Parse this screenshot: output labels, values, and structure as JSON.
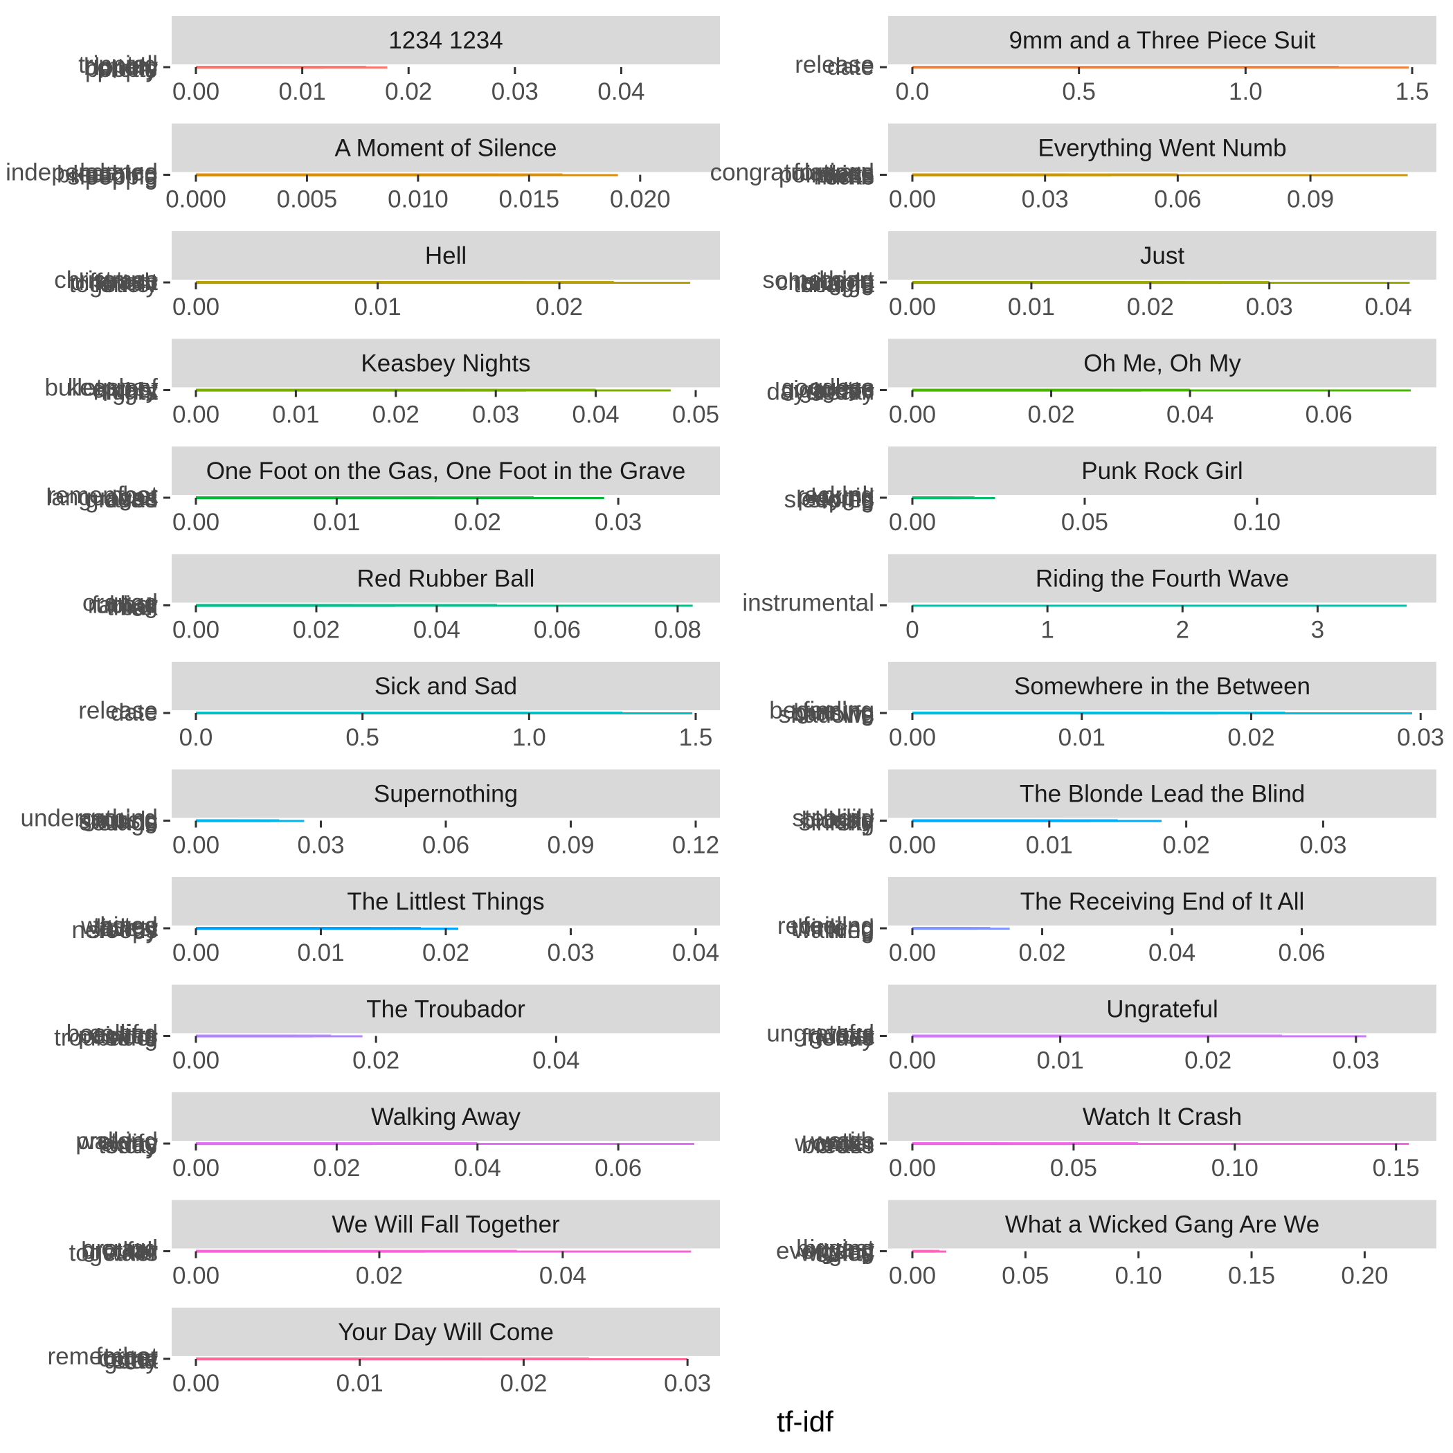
{
  "chart_data": {
    "type": "bar",
    "orientation": "horizontal",
    "facet_columns": 2,
    "xlabel": "tf-idf",
    "ylabel": "",
    "legend": "none",
    "grid": false,
    "panels": [
      {
        "title": "1234 1234",
        "color": "#F8766D",
        "xlim": [
          0,
          0.047
        ],
        "ticks": [
          "0.00",
          "0.01",
          "0.02",
          "0.03",
          "0.04"
        ],
        "tick_values": [
          0,
          0.01,
          0.02,
          0.03,
          0.04
        ],
        "words": [
          "tripping",
          "bottom",
          "people",
          "tell",
          "lonely",
          "pretty"
        ],
        "values": [
          0.018,
          0.016,
          0.012,
          0.01,
          0.008,
          0.008
        ]
      },
      {
        "title": "9mm and a Three Piece Suit",
        "color": "#ED8141",
        "xlim": [
          0,
          1.5
        ],
        "ticks": [
          "0.0",
          "0.5",
          "1.0",
          "1.5"
        ],
        "tick_values": [
          0,
          0.5,
          1.0,
          1.5
        ],
        "words": [
          "release",
          "date"
        ],
        "values": [
          1.49,
          1.28
        ]
      },
      {
        "title": "A Moment of Silence",
        "color": "#DE8C00",
        "xlim": [
          0,
          0.0225
        ],
        "ticks": [
          "0.000",
          "0.005",
          "0.010",
          "0.015",
          "0.020"
        ],
        "tick_values": [
          0,
          0.005,
          0.01,
          0.015,
          0.02
        ],
        "words": [
          "independence",
          "breathing",
          "sleeping",
          "located",
          "keeping",
          "people"
        ],
        "values": [
          0.019,
          0.0165,
          0.0148,
          0.0136,
          0.013,
          0.012
        ]
      },
      {
        "title": "Everything Went Numb",
        "color": "#CD9600",
        "xlim": [
          0,
          0.113
        ],
        "ticks": [
          "0.00",
          "0.03",
          "0.06",
          "0.09"
        ],
        "tick_values": [
          0,
          0.03,
          0.06,
          0.09
        ],
        "words": [
          "congratulations",
          "pointless",
          "numb",
          "forward",
          "shirts",
          "rocks"
        ],
        "values": [
          0.112,
          0.06,
          0.045,
          0.035,
          0.028,
          0.022
        ]
      },
      {
        "title": "Hell",
        "color": "#B79F00",
        "xlim": [
          0,
          0.0275
        ],
        "ticks": [
          "0.00",
          "0.01",
          "0.02"
        ],
        "tick_values": [
          0,
          0.01,
          0.02
        ],
        "words": [
          "return",
          "different",
          "together",
          "christmas",
          "crash",
          "lonely"
        ],
        "values": [
          0.0272,
          0.023,
          0.02,
          0.018,
          0.016,
          0.014
        ]
      },
      {
        "title": "Just",
        "color": "#9DA700",
        "xlim": [
          0,
          0.042
        ],
        "ticks": [
          "0.00",
          "0.01",
          "0.02",
          "0.03",
          "0.04"
        ],
        "tick_values": [
          0,
          0.01,
          0.02,
          0.03,
          0.04
        ],
        "words": [
          "something",
          "changing",
          "charge",
          "heart",
          "simple",
          "thought"
        ],
        "values": [
          0.0418,
          0.03,
          0.026,
          0.023,
          0.021,
          0.02
        ]
      },
      {
        "title": "Keasbey Nights",
        "color": "#7CAE00",
        "xlim": [
          0,
          0.05
        ],
        "ticks": [
          "0.00",
          "0.01",
          "0.02",
          "0.03",
          "0.04",
          "0.05"
        ],
        "tick_values": [
          0,
          0.01,
          0.02,
          0.03,
          0.04,
          0.05
        ],
        "words": [
          "bulletproof",
          "vest",
          "nights",
          "keasbey",
          "empty",
          "night"
        ],
        "values": [
          0.0475,
          0.04,
          0.033,
          0.03,
          0.027,
          0.025
        ]
      },
      {
        "title": "Oh Me, Oh My",
        "color": "#49B500",
        "xlim": [
          0,
          0.072
        ],
        "ticks": [
          "0.00",
          "0.02",
          "0.04",
          "0.06"
        ],
        "tick_values": [
          0,
          0.02,
          0.04,
          0.06
        ],
        "words": [
          "goodbye",
          "cigarette",
          "daydream",
          "guess",
          "goes",
          "today"
        ],
        "values": [
          0.0718,
          0.04,
          0.033,
          0.029,
          0.024,
          0.022
        ]
      },
      {
        "title": "One Foot on the Gas, One Foot in the Grave",
        "color": "#00BA38",
        "xlim": [
          0,
          0.0355
        ],
        "ticks": [
          "0.00",
          "0.01",
          "0.02",
          "0.03"
        ],
        "tick_values": [
          0,
          0.01,
          0.02,
          0.03
        ],
        "words": [
          "remember",
          "languages",
          "graves",
          "foot",
          "gas",
          "dead"
        ],
        "values": [
          0.029,
          0.024,
          0.02,
          0.017,
          0.015,
          0.0125
        ]
      },
      {
        "title": "Punk Rock Girl",
        "color": "#00BE6C",
        "xlim": [
          0,
          0.145
        ],
        "ticks": [
          "0.00",
          "0.05",
          "0.10"
        ],
        "tick_values": [
          0,
          0.05,
          0.1
        ],
        "words": [
          "punk",
          "playing",
          "sleeping",
          "rocking",
          "girl",
          "stores"
        ],
        "values": [
          0.024,
          0.018,
          0.014,
          0.012,
          0.011,
          0.01
        ]
      },
      {
        "title": "Red Rubber Ball",
        "color": "#00C08B",
        "xlim": [
          0,
          0.083
        ],
        "ticks": [
          "0.00",
          "0.02",
          "0.04",
          "0.06",
          "0.08"
        ],
        "tick_values": [
          0,
          0.02,
          0.04,
          0.06,
          0.08
        ],
        "words": [
          "orange",
          "rubber",
          "ball",
          "red",
          "fading",
          "think"
        ],
        "values": [
          0.0825,
          0.05,
          0.033,
          0.026,
          0.021,
          0.0165
        ]
      },
      {
        "title": "Riding the Fourth Wave",
        "color": "#00C1A7",
        "xlim": [
          0,
          3.7
        ],
        "ticks": [
          "0",
          "1",
          "2",
          "3"
        ],
        "tick_values": [
          0,
          1,
          2,
          3
        ],
        "words": [
          "instrumental"
        ],
        "values": [
          3.66
        ]
      },
      {
        "title": "Sick and Sad",
        "color": "#00BFC2",
        "xlim": [
          0,
          1.5
        ],
        "ticks": [
          "0.0",
          "0.5",
          "1.0",
          "1.5"
        ],
        "tick_values": [
          0,
          0.5,
          1.0,
          1.5
        ],
        "words": [
          "release",
          "date"
        ],
        "values": [
          1.49,
          1.28
        ]
      },
      {
        "title": "Somewhere in the Between",
        "color": "#00BBDB",
        "xlim": [
          0,
          0.0295
        ],
        "ticks": [
          "0.00",
          "0.01",
          "0.02",
          "0.03"
        ],
        "tick_values": [
          0,
          0.01,
          0.02,
          0.03
        ],
        "words": [
          "beginning",
          "chasing",
          "shadows",
          "feeling",
          "burning",
          "life"
        ],
        "values": [
          0.0295,
          0.022,
          0.018,
          0.015,
          0.013,
          0.011
        ]
      },
      {
        "title": "Supernothing",
        "color": "#00B6EB",
        "xlim": [
          0,
          0.12
        ],
        "ticks": [
          "0.00",
          "0.03",
          "0.06",
          "0.09",
          "0.12"
        ],
        "tick_values": [
          0,
          0.03,
          0.06,
          0.09,
          0.12
        ],
        "words": [
          "underground",
          "starting",
          "stage",
          "nothing",
          "music",
          "sounds"
        ],
        "values": [
          0.026,
          0.02,
          0.018,
          0.015,
          0.012,
          0.01
        ]
      },
      {
        "title": "The Blonde Lead the Blind",
        "color": "#00ADFA",
        "xlim": [
          0,
          0.0365
        ],
        "ticks": [
          "0.00",
          "0.01",
          "0.02",
          "0.03"
        ],
        "tick_values": [
          0,
          0.01,
          0.02,
          0.03
        ],
        "words": [
          "steadily",
          "blonde",
          "sinking",
          "blind",
          "lead",
          "sky"
        ],
        "values": [
          0.0182,
          0.015,
          0.013,
          0.011,
          0.01,
          0.009
        ]
      },
      {
        "title": "The Littlest Things",
        "color": "#00A2FF",
        "xlim": [
          0,
          0.04
        ],
        "ticks": [
          "0.00",
          "0.01",
          "0.02",
          "0.03",
          "0.04"
        ],
        "tick_values": [
          0,
          0.01,
          0.02,
          0.03,
          0.04
        ],
        "words": [
          "wasted",
          "littlest",
          "sleepy",
          "things",
          "away",
          "nervous"
        ],
        "values": [
          0.021,
          0.018,
          0.016,
          0.014,
          0.013,
          0.012
        ]
      },
      {
        "title": "The Receiving End of It All",
        "color": "#7F96FF",
        "xlim": [
          0,
          0.077
        ],
        "ticks": [
          "0.00",
          "0.02",
          "0.04",
          "0.06"
        ],
        "tick_values": [
          0,
          0.02,
          0.04,
          0.06
        ],
        "words": [
          "receiving",
          "thinking",
          "tired",
          "feeling",
          "end",
          "walking"
        ],
        "values": [
          0.015,
          0.012,
          0.01,
          0.009,
          0.008,
          0.0075
        ]
      },
      {
        "title": "The Troubador",
        "color": "#B385FF",
        "xlim": [
          0,
          0.0555
        ],
        "ticks": [
          "0.00",
          "0.02",
          "0.04"
        ],
        "tick_values": [
          0,
          0.02,
          0.04
        ],
        "words": [
          "beautiful",
          "colors",
          "troubador",
          "calling",
          "painted",
          "song"
        ],
        "values": [
          0.0185,
          0.015,
          0.013,
          0.011,
          0.01,
          0.009
        ]
      },
      {
        "title": "Ungrateful",
        "color": "#D177FF",
        "xlim": [
          0,
          0.0338
        ],
        "ticks": [
          "0.00",
          "0.01",
          "0.02",
          "0.03"
        ],
        "tick_values": [
          0,
          0.01,
          0.02,
          0.03
        ],
        "words": [
          "ungrateful",
          "guess",
          "today",
          "ways",
          "lost",
          "friends"
        ],
        "values": [
          0.0307,
          0.025,
          0.02,
          0.018,
          0.016,
          0.014
        ]
      },
      {
        "title": "Walking Away",
        "color": "#E36EF6",
        "xlim": [
          0,
          0.071
        ],
        "ticks": [
          "0.00",
          "0.02",
          "0.04",
          "0.06"
        ],
        "tick_values": [
          0,
          0.02,
          0.04,
          0.06
        ],
        "words": [
          "pretend",
          "away",
          "today",
          "walking",
          "life",
          "story"
        ],
        "values": [
          0.0708,
          0.04,
          0.025,
          0.02,
          0.017,
          0.015
        ]
      },
      {
        "title": "Watch It Crash",
        "color": "#F265E7",
        "xlim": [
          0,
          0.155
        ],
        "ticks": [
          "0.00",
          "0.05",
          "0.10",
          "0.15"
        ],
        "tick_values": [
          0,
          0.05,
          0.1,
          0.15
        ],
        "words": [
          "watch",
          "crash",
          "breaks",
          "waits",
          "wonder",
          "cross"
        ],
        "values": [
          0.154,
          0.07,
          0.05,
          0.03,
          0.025,
          0.015
        ]
      },
      {
        "title": "We Will Fall Together",
        "color": "#FB61D7",
        "xlim": [
          0,
          0.0545
        ],
        "ticks": [
          "0.00",
          "0.02",
          "0.04"
        ],
        "tick_values": [
          0,
          0.02,
          0.04
        ],
        "words": [
          "ground",
          "fall",
          "together",
          "crawl",
          "brother",
          "walls"
        ],
        "values": [
          0.054,
          0.035,
          0.025,
          0.02,
          0.016,
          0.014
        ]
      },
      {
        "title": "What a Wicked Gang Are We",
        "color": "#FF62BC",
        "xlim": [
          0,
          0.221
        ],
        "ticks": [
          "0.00",
          "0.05",
          "0.10",
          "0.15",
          "0.20"
        ],
        "tick_values": [
          0,
          0.05,
          0.1,
          0.15,
          0.2
        ],
        "words": [
          "biggest",
          "gang",
          "wicked",
          "buying",
          "everyday",
          "fights"
        ],
        "values": [
          0.015,
          0.012,
          0.01,
          0.009,
          0.008,
          0.007
        ]
      },
      {
        "title": "Your Day Will Come",
        "color": "#FF6A98",
        "xlim": [
          0,
          0.0305
        ],
        "ticks": [
          "0.00",
          "0.01",
          "0.02",
          "0.03"
        ],
        "tick_values": [
          0,
          0.01,
          0.02,
          0.03
        ],
        "words": [
          "remember",
          "bitter",
          "stay",
          "forget",
          "come",
          "gotta"
        ],
        "values": [
          0.03,
          0.024,
          0.02,
          0.0175,
          0.015,
          0.013
        ]
      }
    ]
  }
}
